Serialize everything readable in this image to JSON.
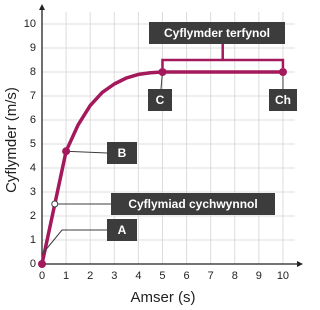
{
  "chart_data": {
    "type": "line",
    "x_label": "Amser (s)",
    "y_label": "Cyflymder (m/s)",
    "xlim": [
      0,
      10.5
    ],
    "ylim": [
      0,
      10.5
    ],
    "xticks": [
      0,
      1,
      2,
      3,
      4,
      5,
      6,
      7,
      8,
      9,
      10
    ],
    "yticks": [
      0,
      1,
      2,
      3,
      4,
      5,
      6,
      7,
      8,
      9,
      10
    ],
    "grid": true,
    "series": [
      {
        "color": "#a3195b",
        "x": [
          0,
          1,
          1.5,
          2,
          2.5,
          3,
          3.5,
          4,
          4.5,
          5,
          10
        ],
        "values": [
          0,
          4.7,
          5.8,
          6.6,
          7.15,
          7.5,
          7.75,
          7.9,
          7.97,
          8,
          8
        ]
      }
    ],
    "annotations": [
      {
        "text": "A",
        "x": 0,
        "y": 0,
        "marker": "filled"
      },
      {
        "text": "B",
        "x": 1,
        "y": 4.7,
        "marker": "filled"
      },
      {
        "text": "Cyflymiad cychwynnol",
        "x": 0.53,
        "y": 2.5,
        "marker": "hollow"
      },
      {
        "text": "C",
        "x": 5,
        "y": 8,
        "marker": "filled"
      },
      {
        "text": "Ch",
        "x": 10,
        "y": 8,
        "marker": "filled"
      },
      {
        "text": "Cyflymder terfynol",
        "x": 5,
        "x2": 10,
        "y": 8,
        "marker": "bracket"
      }
    ]
  }
}
